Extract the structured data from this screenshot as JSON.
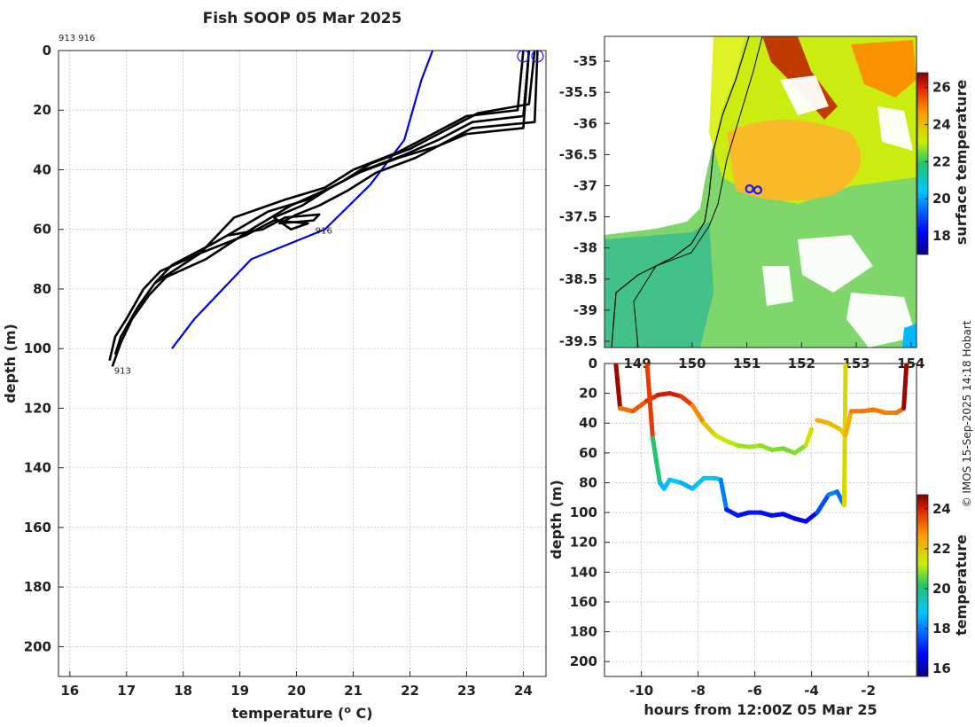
{
  "title": "Fish SOOP 05 Mar 2025",
  "credit": "© IMOS 15-Sep-2025 14:18 Hobart",
  "colors": {
    "profile": "#000000",
    "climatology": "#0000dd",
    "grid": "#bbbbbb",
    "marker": "#1a1aff"
  },
  "chart_data": [
    {
      "name": "profiles",
      "type": "line",
      "xlabel": "temperature (o C)",
      "xlabel_main": "temperature (",
      "xlabel_sup": "o",
      "xlabel_end": " C)",
      "ylabel": "depth (m)",
      "xlim": [
        15.8,
        24.4
      ],
      "ylim": [
        210,
        0
      ],
      "xticks": [
        "16",
        "17",
        "18",
        "19",
        "20",
        "21",
        "22",
        "23",
        "24"
      ],
      "yticks": [
        "0",
        "20",
        "40",
        "60",
        "80",
        "100",
        "120",
        "140",
        "160",
        "180",
        "200"
      ],
      "header_ids": "913 916",
      "profile_labels": [
        {
          "text": "913",
          "temp": 16.75,
          "depth": 107
        },
        {
          "text": "916",
          "temp": 20.3,
          "depth": 60
        }
      ],
      "surface_markers": [
        {
          "temp": 24.0,
          "depth": 1
        },
        {
          "temp": 24.25,
          "depth": 1
        }
      ],
      "series": [
        {
          "name": "climatology",
          "temp": [
            22.4,
            22.2,
            21.9,
            21.3,
            20.5,
            19.2,
            18.2,
            17.8
          ],
          "depth": [
            0,
            10,
            30,
            45,
            60,
            70,
            90,
            100
          ]
        },
        {
          "name": "profile-1",
          "temp": [
            24.0,
            23.9,
            23.0,
            22.4,
            21.8,
            21.0,
            20.5,
            19.8,
            18.9,
            18.3,
            17.6,
            17.3,
            17.0,
            16.8,
            16.7
          ],
          "depth": [
            0,
            20,
            22,
            28,
            34,
            40,
            46,
            50,
            56,
            68,
            74,
            80,
            90,
            96,
            104
          ]
        },
        {
          "name": "profile-2",
          "temp": [
            24.1,
            24.0,
            23.1,
            22.5,
            21.9,
            21.2,
            20.6,
            19.9,
            19.2,
            18.4,
            17.7,
            17.4,
            17.1,
            16.9,
            16.75
          ],
          "depth": [
            0,
            22,
            24,
            30,
            35,
            40,
            46,
            52,
            60,
            70,
            76,
            82,
            90,
            98,
            106
          ]
        },
        {
          "name": "profile-3",
          "temp": [
            24.2,
            24.1,
            23.2,
            22.6,
            22.0,
            21.3,
            20.8,
            20.2,
            19.5,
            18.6,
            17.8,
            17.5,
            17.2,
            16.9,
            16.8
          ],
          "depth": [
            0,
            18,
            21,
            27,
            33,
            38,
            44,
            50,
            54,
            64,
            72,
            78,
            86,
            96,
            102
          ]
        },
        {
          "name": "profile-4",
          "temp": [
            24.25,
            24.2,
            23.1,
            22.7,
            22.1,
            21.4,
            20.9,
            20.4,
            20.0,
            19.7,
            20.3,
            20.4,
            19.8,
            19.4,
            18.8
          ],
          "depth": [
            0,
            24,
            26,
            30,
            36,
            41,
            47,
            52,
            55,
            58,
            57,
            55,
            56,
            60,
            62
          ]
        },
        {
          "name": "profile-5",
          "temp": [
            24.1,
            24.0,
            23.0,
            22.5,
            21.8,
            21.1,
            20.6,
            20.1,
            19.6,
            19.9,
            20.2,
            19.6,
            19.1,
            18.3,
            17.5
          ],
          "depth": [
            0,
            26,
            28,
            32,
            36,
            41,
            46,
            52,
            56,
            60,
            58,
            57,
            62,
            68,
            78
          ]
        }
      ]
    },
    {
      "name": "surface-map",
      "type": "heatmap",
      "xlabel": "",
      "ylabel": "",
      "xlim": [
        148.4,
        154.1
      ],
      "ylim": [
        -39.6,
        -34.6
      ],
      "xticks": [
        "149",
        "150",
        "151",
        "152",
        "153",
        "154"
      ],
      "yticks": [
        "-35",
        "-35.5",
        "-36",
        "-36.5",
        "-37",
        "-37.5",
        "-38",
        "-38.5",
        "-39",
        "-39.5"
      ],
      "colorbar_label": "surface temperature",
      "colorbar_range": [
        17,
        26.8
      ],
      "colorbar_ticks": [
        "18",
        "20",
        "22",
        "24",
        "26"
      ],
      "markers": [
        {
          "lon": 151.05,
          "lat": -37.05
        },
        {
          "lon": 151.2,
          "lat": -37.07
        }
      ]
    },
    {
      "name": "depth-time",
      "type": "scatter",
      "xlabel": "hours from 12:00Z 05 Mar 25",
      "ylabel": "depth (m)",
      "xlim": [
        -11.3,
        -0.3
      ],
      "ylim": [
        210,
        0
      ],
      "xticks": [
        "-10",
        "-8",
        "-6",
        "-4",
        "-2"
      ],
      "yticks": [
        "0",
        "20",
        "40",
        "60",
        "80",
        "100",
        "120",
        "140",
        "160",
        "180",
        "200"
      ],
      "colorbar_label": "temperature",
      "colorbar_range": [
        15.6,
        24.7
      ],
      "colorbar_ticks": [
        "16",
        "18",
        "20",
        "22",
        "24"
      ],
      "tracks": [
        {
          "hours": [
            -10.9,
            -10.75,
            -10.3,
            -9.8,
            -9.4,
            -9.0,
            -8.6,
            -8.2,
            -7.8,
            -7.4,
            -7.0,
            -6.6,
            -6.2,
            -5.8,
            -5.4,
            -5.0,
            -4.6,
            -4.2,
            -4.0
          ],
          "depth": [
            0,
            30,
            32,
            25,
            21,
            20,
            22,
            28,
            40,
            48,
            52,
            55,
            56,
            55,
            58,
            57,
            60,
            55,
            44
          ]
        },
        {
          "hours": [
            -9.8,
            -9.6,
            -9.35,
            -9.2,
            -9.0,
            -8.6,
            -8.2,
            -7.8,
            -7.4,
            -7.2,
            -7.0,
            -6.6,
            -6.2,
            -5.8,
            -5.4,
            -5.0,
            -4.6,
            -4.2,
            -3.8,
            -3.4,
            -3.1,
            -2.85,
            -2.8
          ],
          "depth": [
            0,
            50,
            80,
            84,
            78,
            80,
            84,
            77,
            77,
            78,
            98,
            102,
            100,
            100,
            102,
            101,
            104,
            106,
            100,
            88,
            86,
            95,
            0
          ]
        },
        {
          "hours": [
            -3.8,
            -3.4,
            -3.0,
            -2.8,
            -2.6,
            -2.2,
            -1.8,
            -1.4,
            -1.0,
            -0.75,
            -0.65
          ],
          "depth": [
            38,
            40,
            44,
            48,
            32,
            32,
            31,
            33,
            33,
            30,
            0
          ]
        }
      ]
    }
  ]
}
